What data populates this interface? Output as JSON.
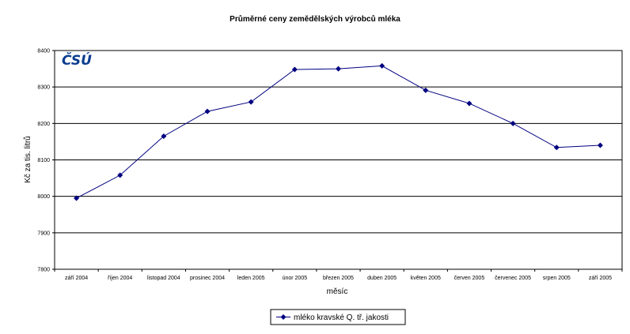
{
  "chart_data": {
    "type": "line",
    "title": "Průměrné ceny zemědělských výrobců mléka",
    "xlabel": "měsíc",
    "ylabel": "Kč za tis. litrů",
    "ylim": [
      7800,
      8400
    ],
    "yticks": [
      "7800",
      "7900",
      "8000",
      "8100",
      "8200",
      "8300",
      "8400"
    ],
    "grid": true,
    "legend_position": "bottom",
    "categories": [
      "září 2004",
      "říjen 2004",
      "listopad 2004",
      "prosinec 2004",
      "leden 2005",
      "únor 2005",
      "březen 2005",
      "duben 2005",
      "květen 2005",
      "červen 2005",
      "červenec 2005",
      "srpen 2005",
      "září 2005"
    ],
    "series": [
      {
        "name": "mléko kravské Q. tř. jakosti",
        "color": "#000080",
        "values": [
          7995,
          8058,
          8165,
          8233,
          8259,
          8348,
          8350,
          8358,
          8291,
          8255,
          8200,
          8134,
          8140
        ]
      }
    ]
  },
  "logo": {
    "text": "ČSÚ",
    "color": "#0a3d8f"
  }
}
